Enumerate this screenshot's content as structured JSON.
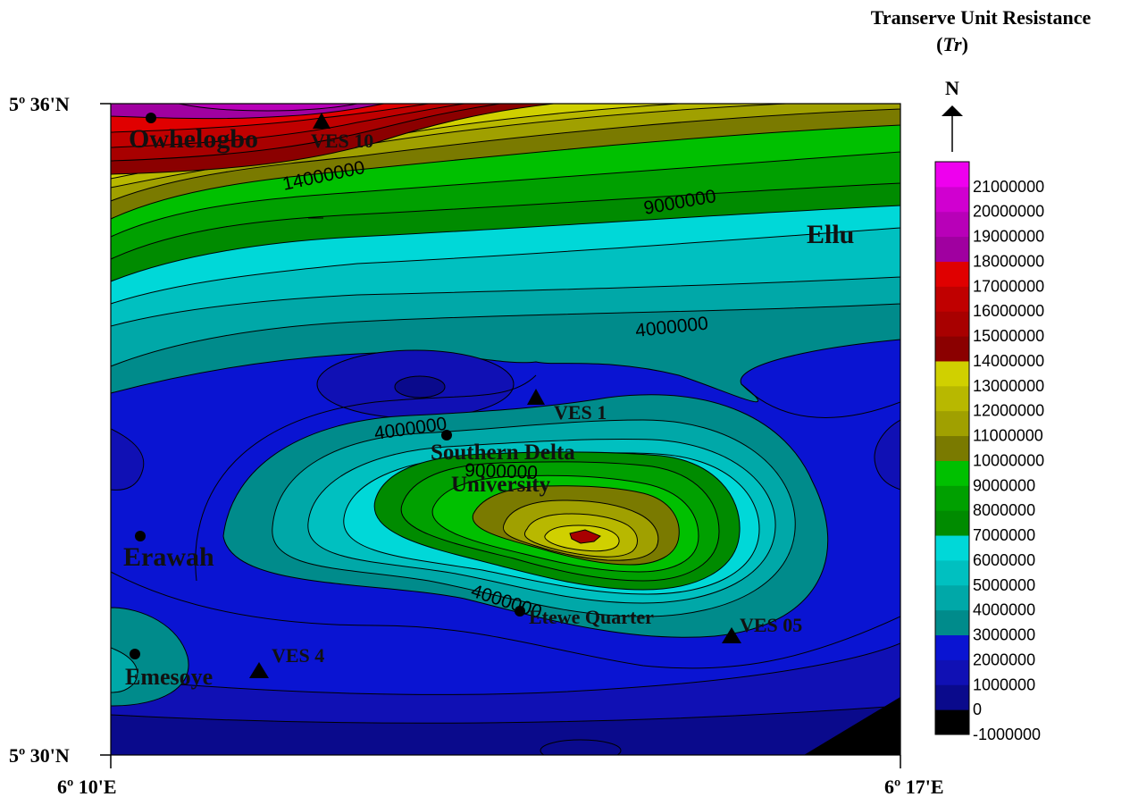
{
  "title": {
    "line1": "Transerve Unit Resistance",
    "line2_open": "(",
    "line2_var": "Tr",
    "line2_close": ")"
  },
  "north_arrow": {
    "label": "N"
  },
  "axes": {
    "lat_top": "5º 36'N",
    "lat_bottom": "5º 30'N",
    "lon_left": "6º 10'E",
    "lon_right": "6º 17'E"
  },
  "places": {
    "owhelogbo": "Owhelogbo",
    "ellu": "Ellu",
    "southern_delta": "Southern Delta",
    "university": "University",
    "erawah": "Erawah",
    "emesoye": "Emesoye",
    "etewe": "Etewe Quarter"
  },
  "ves": {
    "ves10": "VES 10",
    "ves1": "VES 1",
    "ves4": "VES 4",
    "ves05": "VES 05"
  },
  "contour_labels": {
    "c14m": "14000000",
    "c9m_top": "9000000",
    "c4m_right": "4000000",
    "c4m_mid": "4000000",
    "c9m_center": "9000000",
    "c4m_low": "4000000"
  },
  "legend": {
    "colors": [
      "#000000",
      "#0a0a8c",
      "#1010b4",
      "#0a14d2",
      "#008b8b",
      "#00a8a8",
      "#00c0c0",
      "#00d8d8",
      "#008b00",
      "#00a000",
      "#00c000",
      "#7a7a00",
      "#a0a000",
      "#b8b800",
      "#d0d000",
      "#8b0000",
      "#a80000",
      "#c00000",
      "#e00000",
      "#a000a0",
      "#b800b8",
      "#d000d0",
      "#ee00ee"
    ],
    "labels": [
      "21000000",
      "20000000",
      "19000000",
      "18000000",
      "17000000",
      "16000000",
      "15000000",
      "14000000",
      "13000000",
      "12000000",
      "11000000",
      "10000000",
      "9000000",
      "8000000",
      "7000000",
      "6000000",
      "5000000",
      "4000000",
      "3000000",
      "2000000",
      "1000000",
      "0",
      "-1000000"
    ]
  }
}
